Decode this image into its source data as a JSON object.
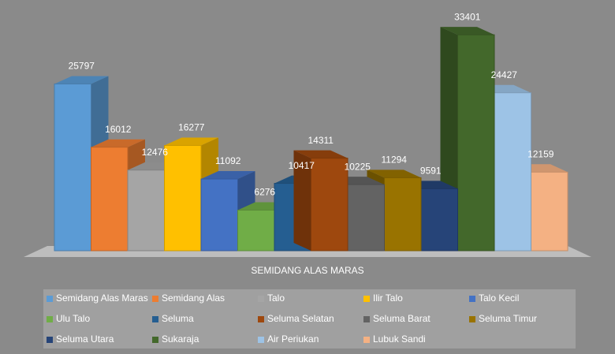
{
  "chart_data": {
    "type": "bar3d",
    "categories": [
      "SEMIDANG ALAS MARAS"
    ],
    "series": [
      {
        "name": "Semidang Alas Maras",
        "color": "#5b9bd5",
        "values": [
          25797
        ],
        "value_labels": [
          "25.797"
        ]
      },
      {
        "name": "Semidang Alas",
        "color": "#ed7d31",
        "values": [
          16012
        ],
        "value_labels": [
          "16.012"
        ]
      },
      {
        "name": "Talo",
        "color": "#a5a5a5",
        "values": [
          12476
        ],
        "value_labels": [
          "12.476"
        ]
      },
      {
        "name": "Ilir Talo",
        "color": "#ffc000",
        "values": [
          16277
        ],
        "value_labels": [
          "16.277"
        ]
      },
      {
        "name": "Talo Kecil",
        "color": "#4472c4",
        "values": [
          11092
        ],
        "value_labels": [
          "11.092"
        ]
      },
      {
        "name": "Ulu Talo",
        "color": "#70ad47",
        "values": [
          6276
        ],
        "value_labels": [
          "6.276"
        ]
      },
      {
        "name": "Seluma",
        "color": "#255e91",
        "values": [
          10417
        ],
        "value_labels": [
          "10.417"
        ]
      },
      {
        "name": "Seluma Selatan",
        "color": "#9e480e",
        "values": [
          14311
        ],
        "value_labels": [
          "14.311"
        ]
      },
      {
        "name": "Seluma Barat",
        "color": "#636363",
        "values": [
          10225
        ],
        "value_labels": [
          "10.225"
        ]
      },
      {
        "name": "Seluma Timur",
        "color": "#997300",
        "values": [
          11294
        ],
        "value_labels": [
          "11.294"
        ]
      },
      {
        "name": "Seluma Utara",
        "color": "#264478",
        "values": [
          9591
        ],
        "value_labels": [
          "9.591"
        ]
      },
      {
        "name": "Sukaraja",
        "color": "#43682b",
        "values": [
          33401
        ],
        "value_labels": [
          "33.401"
        ]
      },
      {
        "name": "Air Periukan",
        "color": "#9dc3e6",
        "values": [
          24427
        ],
        "value_labels": [
          "24.427"
        ]
      },
      {
        "name": "Lubuk Sandi",
        "color": "#f4b183",
        "values": [
          12159
        ],
        "value_labels": [
          "12.159"
        ]
      }
    ]
  }
}
